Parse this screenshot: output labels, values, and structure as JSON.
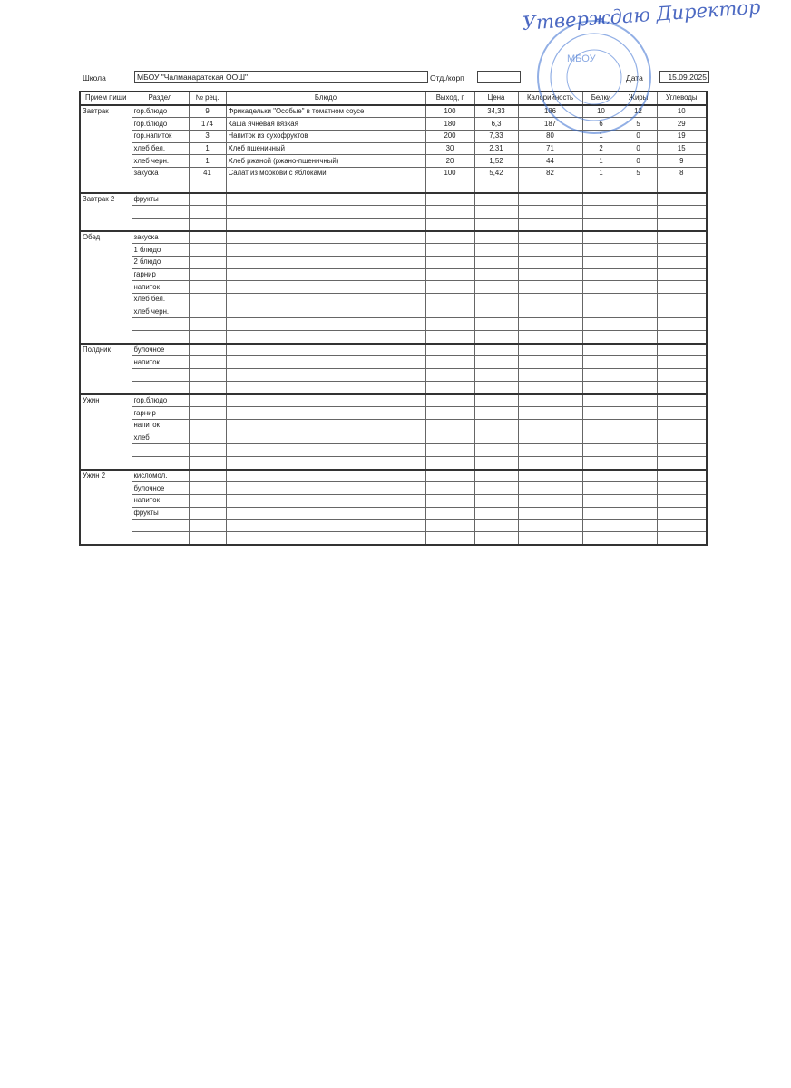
{
  "header": {
    "school_label": "Школа",
    "school_value": "МБОУ \"Чалманаратская ООШ\"",
    "dept_label": "Отд./корп",
    "dept_value": "",
    "date_label": "Дата",
    "date_value": "15.09.2025"
  },
  "columns": [
    "Прием пищи",
    "Раздел",
    "№ рец.",
    "Блюдо",
    "Выход, г",
    "Цена",
    "Калорийность",
    "Белки",
    "Жиры",
    "Углеводы"
  ],
  "meals": [
    {
      "name": "Завтрак",
      "rows": [
        [
          "гор.блюдо",
          "9",
          "Фрикадельки \"Особые\" в томатном соусе",
          "100",
          "34,33",
          "186",
          "10",
          "12",
          "10"
        ],
        [
          "гор.блюдо",
          "174",
          "Каша ячневая вязкая",
          "180",
          "6,3",
          "187",
          "6",
          "5",
          "29"
        ],
        [
          "гор.напиток",
          "3",
          "Напиток из  сухофруктов",
          "200",
          "7,33",
          "80",
          "1",
          "0",
          "19"
        ],
        [
          "хлеб бел.",
          "1",
          "Хлеб пшеничный",
          "30",
          "2,31",
          "71",
          "2",
          "0",
          "15"
        ],
        [
          "хлеб черн.",
          "1",
          "Хлеб ржаной (ржано-пшеничный)",
          "20",
          "1,52",
          "44",
          "1",
          "0",
          "9"
        ],
        [
          "закуска",
          "41",
          "Салат из моркови с яблоками",
          "100",
          "5,42",
          "82",
          "1",
          "5",
          "8"
        ],
        [
          "",
          "",
          "",
          "",
          "",
          "",
          "",
          "",
          ""
        ]
      ]
    },
    {
      "name": "Завтрак 2",
      "rows": [
        [
          "фрукты"
        ],
        [
          ""
        ],
        [
          ""
        ]
      ]
    },
    {
      "name": "Обед",
      "rows": [
        [
          "закуска"
        ],
        [
          "1 блюдо"
        ],
        [
          "2 блюдо"
        ],
        [
          "гарнир"
        ],
        [
          "напиток"
        ],
        [
          "хлеб бел."
        ],
        [
          "хлеб черн."
        ],
        [
          ""
        ],
        [
          ""
        ]
      ]
    },
    {
      "name": "Полдник",
      "rows": [
        [
          "булочное"
        ],
        [
          "напиток"
        ],
        [
          ""
        ],
        [
          ""
        ]
      ]
    },
    {
      "name": "Ужин",
      "rows": [
        [
          "гор.блюдо"
        ],
        [
          "гарнир"
        ],
        [
          "напиток"
        ],
        [
          "хлеб"
        ],
        [
          ""
        ],
        [
          ""
        ]
      ]
    },
    {
      "name": "Ужин 2",
      "rows": [
        [
          "кисломол."
        ],
        [
          "булочное"
        ],
        [
          "напиток"
        ],
        [
          "фрукты"
        ],
        [
          ""
        ],
        [
          ""
        ]
      ]
    }
  ],
  "stamp": {
    "text": "МБОУ",
    "color": "#3a6fd0"
  },
  "signature": {
    "text": "Утверждаю Директор",
    "color": "#2d4fb8"
  }
}
